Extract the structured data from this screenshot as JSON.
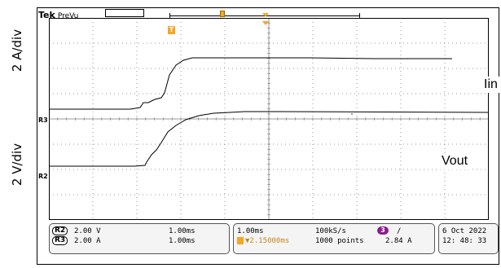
{
  "axis_labels": {
    "top": "2 A/div",
    "bottom": "2 V/div"
  },
  "header": {
    "brand": "Tek",
    "mode": "PreVu"
  },
  "trigger_marker": "T",
  "channel_markers": {
    "r3": "R3",
    "r2": "R2"
  },
  "trace_labels": {
    "iin": "Iin",
    "vout": "Vout"
  },
  "readout": {
    "ch_rows": [
      {
        "tag": "R2",
        "scale": "2.00 V",
        "time": "1.00ms"
      },
      {
        "tag": "R3",
        "scale": "2.00 A",
        "time": "1.00ms"
      }
    ],
    "horizontal": {
      "timebase": "1.00ms",
      "sample_rate": "100kS/s",
      "trigger_channel": "3",
      "trigger_slope": "/",
      "position": "▼2.15000ms",
      "points": "1000 points",
      "trigger_level": "2.84 A"
    },
    "date": "6 Oct  2022",
    "time": "12: 48: 33"
  },
  "colors": {
    "trace": "#000000",
    "grid": "#7a7a7a",
    "trigger": "#f5a623",
    "ch3_badge": "#8a1f8a"
  }
}
